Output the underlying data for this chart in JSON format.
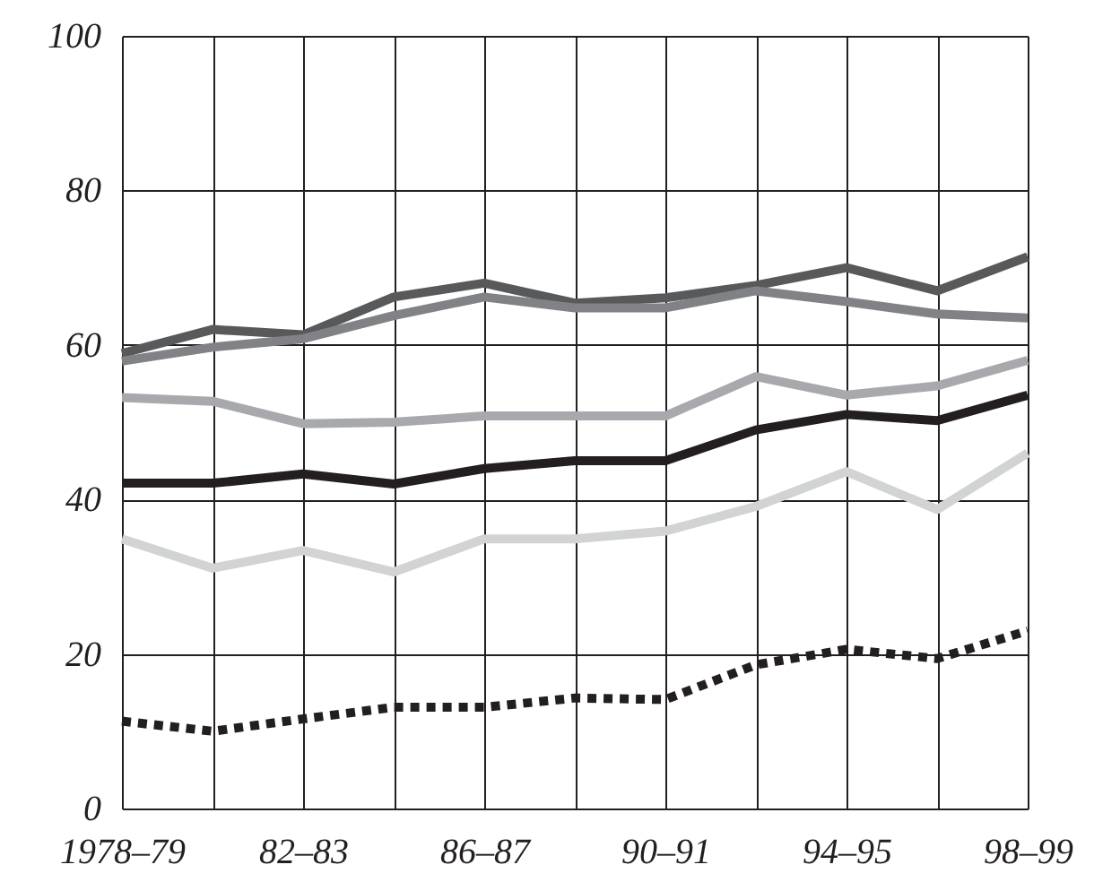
{
  "chart_data": {
    "type": "line",
    "categories": [
      "1978–79",
      null,
      "82–83",
      null,
      "86–87",
      null,
      "90–91",
      null,
      "94–95",
      null,
      "98–99"
    ],
    "series": [
      {
        "color": "#58595b",
        "values": [
          58.9,
          62.0,
          61.3,
          66.2,
          68.0,
          65.4,
          66.1,
          67.7,
          70.0,
          67.0,
          71.4
        ]
      },
      {
        "color": "#808285",
        "values": [
          57.9,
          59.7,
          60.8,
          63.8,
          66.2,
          64.8,
          64.8,
          67.0,
          65.6,
          64.0,
          63.5
        ]
      },
      {
        "color": "#a7a9ac",
        "values": [
          53.2,
          52.7,
          49.8,
          50.0,
          50.8,
          50.8,
          50.8,
          55.9,
          53.5,
          54.7,
          58.0
        ]
      },
      {
        "color": "#231f20",
        "values": [
          42.1,
          42.1,
          43.3,
          42.0,
          44.0,
          45.0,
          45.0,
          49.0,
          51.0,
          50.2,
          53.5
        ]
      },
      {
        "color": "#d1d3d4",
        "values": [
          34.9,
          31.1,
          33.4,
          30.6,
          34.9,
          34.9,
          35.9,
          39.1,
          43.6,
          38.7,
          46.0
        ]
      },
      {
        "color": "#231f20",
        "line_style": "dotted",
        "values": [
          11.3,
          10.0,
          11.6,
          13.1,
          13.1,
          14.3,
          14.1,
          18.6,
          20.6,
          19.4,
          23.0
        ]
      }
    ],
    "ylim": [
      0,
      100
    ],
    "yticks": [
      0,
      20,
      40,
      60,
      80,
      100
    ],
    "grid": true,
    "marker": "none"
  }
}
